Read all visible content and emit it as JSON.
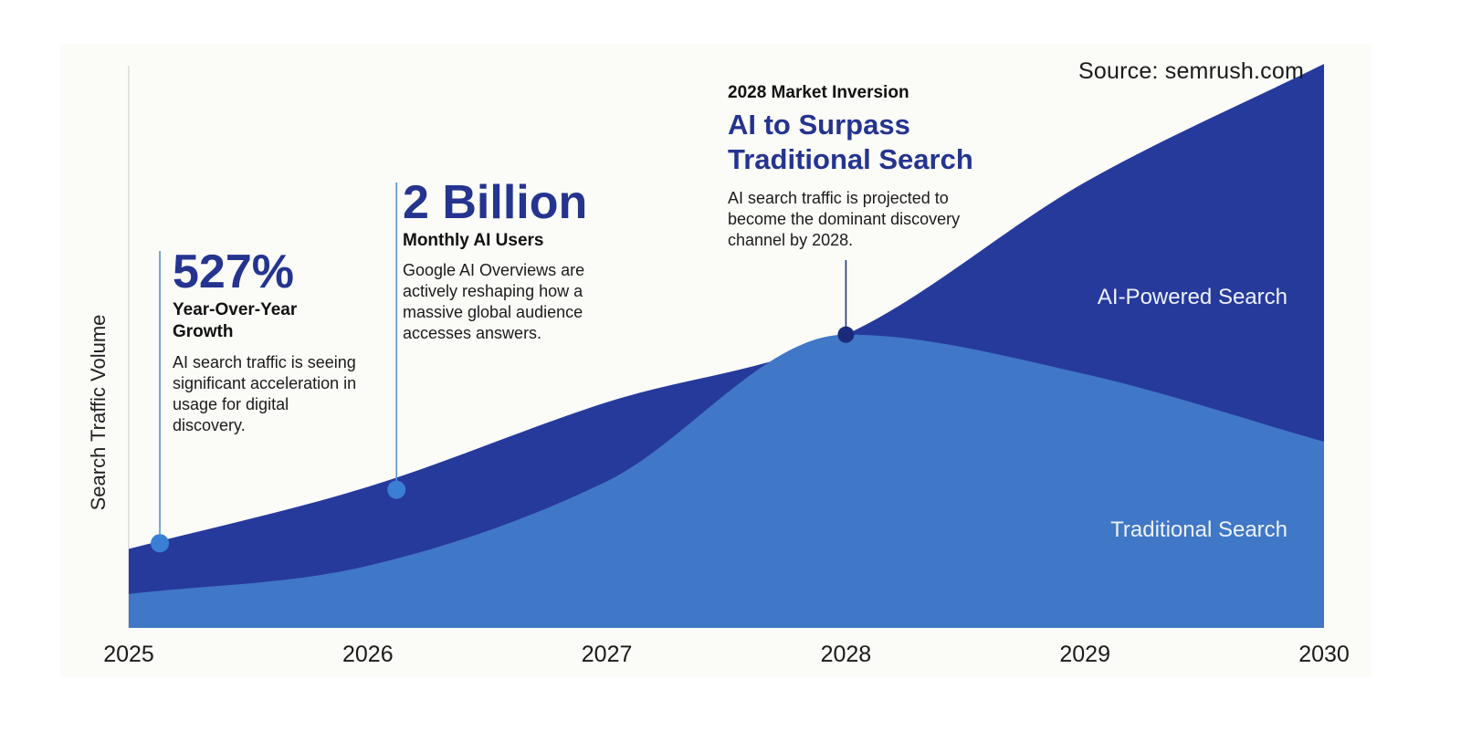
{
  "source": "Source: semrush.com",
  "colors": {
    "ai_powered": "#263a9c",
    "traditional": "#4077c6",
    "accent_text": "#24348f",
    "leader_line": "#5b8fd6"
  },
  "chart_data": {
    "type": "area",
    "title": "",
    "xlabel": "",
    "ylabel": "Search Traffic Volume",
    "x": [
      2025,
      2026,
      2027,
      2028,
      2029,
      2030
    ],
    "xlim": [
      2025,
      2030
    ],
    "ylim": [
      0,
      100
    ],
    "grid": false,
    "series": [
      {
        "name": "AI-Powered Search",
        "values": [
          14,
          25,
          40,
          52,
          79,
          100
        ],
        "color": "#263a9c"
      },
      {
        "name": "Traditional Search",
        "values": [
          6,
          11,
          26,
          52,
          45,
          33
        ],
        "color": "#4077c6"
      }
    ],
    "markers": [
      {
        "x": 2025.13,
        "y": 15
      },
      {
        "x": 2026.12,
        "y": 24.5
      },
      {
        "x": 2028.0,
        "y": 52
      }
    ]
  },
  "callouts": {
    "growth": {
      "big": "527%",
      "sub": "Year-Over-Year Growth",
      "body": "AI search traffic is seeing significant acceleration in usage for digital discovery."
    },
    "users": {
      "big": "2 Billion",
      "sub": "Monthly AI Users",
      "body": "Google AI Overviews are actively reshaping how a massive global audience accesses answers."
    },
    "inversion": {
      "kicker": "2028 Market Inversion",
      "headline": "AI to Surpass Traditional Search",
      "body": "AI search traffic is projected to become the dominant discovery channel by 2028."
    }
  }
}
